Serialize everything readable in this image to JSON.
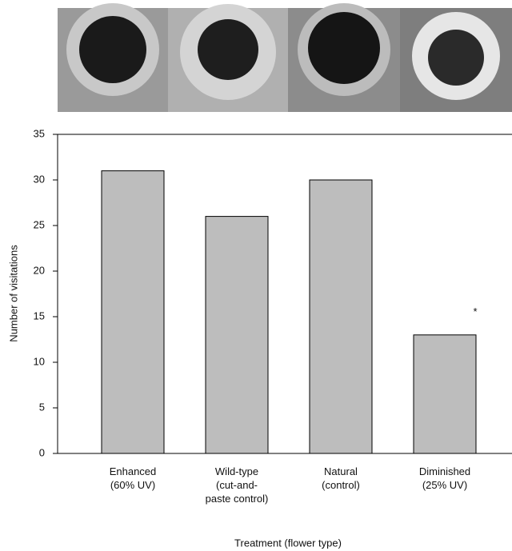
{
  "chart_data": {
    "type": "bar",
    "categories": [
      "Enhanced\n(60% UV)",
      "Wild-type\n(cut-and-\npaste control)",
      "Natural\n(control)",
      "Diminished\n(25% UV)"
    ],
    "values": [
      31,
      26,
      30,
      13
    ],
    "color": "#bdbdbd",
    "ylim": [
      0,
      35
    ],
    "yticks": [
      0,
      5,
      10,
      15,
      20,
      25,
      30,
      35
    ],
    "y_label": "Number of visitations",
    "x_label": "Treatment (flower type)",
    "annotations": [
      {
        "text": "*",
        "category": 3
      }
    ]
  }
}
